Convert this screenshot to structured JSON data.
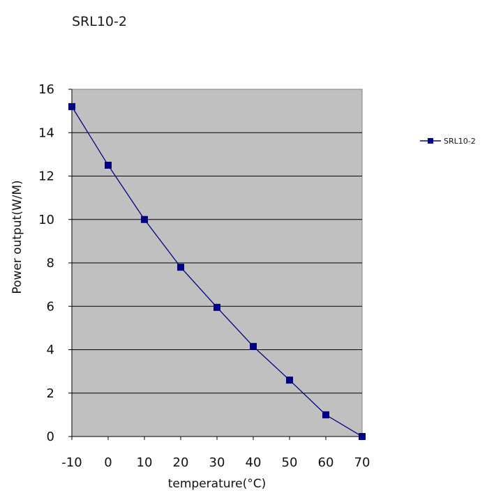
{
  "chart_data": {
    "type": "line",
    "title": "SRL10-2",
    "xlabel": "temperature(°C)",
    "ylabel": "Power output(W/M)",
    "x": [
      -10,
      0,
      10,
      20,
      30,
      40,
      50,
      60,
      70
    ],
    "xlim": [
      -10,
      70
    ],
    "ylim": [
      0,
      16
    ],
    "x_ticks": [
      "-10",
      "0",
      "10",
      "20",
      "30",
      "40",
      "50",
      "60",
      "70"
    ],
    "y_ticks": [
      "0",
      "2",
      "4",
      "6",
      "8",
      "10",
      "12",
      "14",
      "16"
    ],
    "series": [
      {
        "name": "SRL10-2",
        "color": "#000080",
        "values": [
          15.2,
          12.5,
          10.0,
          7.8,
          5.95,
          4.15,
          2.6,
          1.0,
          0.0
        ]
      }
    ],
    "grid": "horizontal",
    "plot_background": "#c0c0c0",
    "legend": "right"
  }
}
